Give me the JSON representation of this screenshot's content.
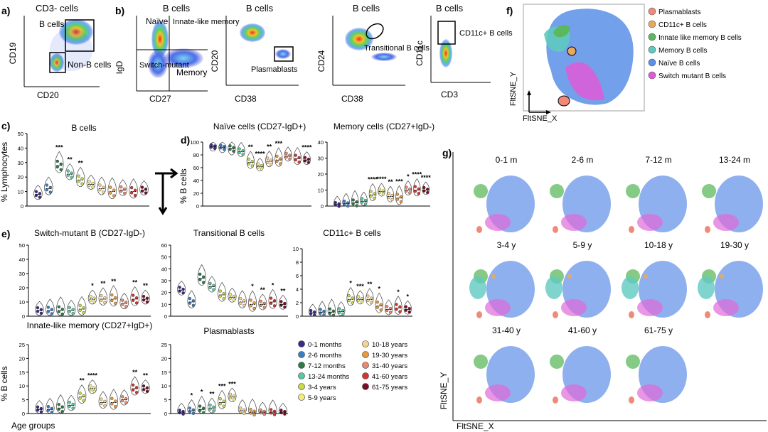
{
  "panels": {
    "a": {
      "letter": "a)",
      "title": "CD3- cells",
      "xlabel": "CD20",
      "ylabel": "CD19",
      "gates": [
        "B cells",
        "Non-B cells"
      ]
    },
    "b": {
      "letter": "b)",
      "title": "B cells",
      "xlabel": "CD27",
      "ylabel": "IgD",
      "quadrants": [
        "Naïve",
        "Innate-like memory",
        "Switch-mutant",
        "Memory"
      ]
    },
    "b2": {
      "title": "B cells",
      "xlabel": "CD38",
      "ylabel": "CD20",
      "gate": "Plasmablasts"
    },
    "b3": {
      "title": "B cells",
      "xlabel": "CD38",
      "ylabel": "CD24",
      "gate": "Transitional B cells"
    },
    "b4": {
      "title": "B cells",
      "xlabel": "CD3",
      "ylabel": "CD11c",
      "gate": "CD11c+ B cells"
    },
    "c": {
      "letter": "c)",
      "title": "B cells",
      "ylabel": "% Lymphocytes"
    },
    "d": {
      "letter": "d)",
      "title1": "Naïve cells (CD27-IgD+)",
      "title2": "Memory cells  (CD27+IgD-)",
      "ylabel": "% B cells"
    },
    "e": {
      "letter": "e)",
      "titles": [
        "Switch-mutant B (CD27-IgD-)",
        "Transitional B cells",
        "CD11c+ B cells",
        "Innate-like memory (CD27+IgD+)",
        "Plasmablasts"
      ],
      "ylabel": "% B cells",
      "xlabel": "Age groups"
    },
    "f": {
      "letter": "f)",
      "xlabel": "FltSNE_X",
      "ylabel": "FltSNE_Y",
      "legend": [
        {
          "label": "Plasmablasts",
          "color": "#ef8a7a"
        },
        {
          "label": "CD11c+ B cells",
          "color": "#e8a860"
        },
        {
          "label": "Innate like memory B cells",
          "color": "#5cb85c"
        },
        {
          "label": "Memory B cells",
          "color": "#5fc9c0"
        },
        {
          "label": "Naïve B cells",
          "color": "#5b8fe8"
        },
        {
          "label": "Switch mutant B cells",
          "color": "#e05ad8"
        }
      ]
    },
    "g": {
      "letter": "g)",
      "xlabel": "FltSNE_X",
      "ylabel": "FltSNE_Y",
      "maps": [
        "0-1 m",
        "2-6 m",
        "7-12 m",
        "13-24 m",
        "3-4 y",
        "5-9 y",
        "10-18 y",
        "19-30 y",
        "31-40 y",
        "41-60 y",
        "61-75 y"
      ]
    }
  },
  "age_legend": [
    {
      "label": "0-1 months",
      "color": "#3b2a8c"
    },
    {
      "label": "2-6 months",
      "color": "#3a7fc4"
    },
    {
      "label": "7-12 months",
      "color": "#2f7a4a"
    },
    {
      "label": "13-24 months",
      "color": "#59c9a0"
    },
    {
      "label": "3-4 years",
      "color": "#c8d84a"
    },
    {
      "label": "5-9 years",
      "color": "#f3ee7a"
    },
    {
      "label": "10-18 years",
      "color": "#f5d590"
    },
    {
      "label": "19-30 years",
      "color": "#e89a3a"
    },
    {
      "label": "31-40 years",
      "color": "#e88a70"
    },
    {
      "label": "41-60 years",
      "color": "#d8352a"
    },
    {
      "label": "61-75 years",
      "color": "#7a1028"
    }
  ],
  "chart_data": [
    {
      "type": "violin",
      "panel": "c",
      "title": "B cells",
      "ylabel": "% Lymphocytes",
      "ylim": [
        0,
        50
      ],
      "yticks": [
        "0",
        "10",
        "20",
        "30",
        "40",
        "50"
      ],
      "medians": [
        8,
        12,
        28,
        22,
        18,
        15,
        12,
        10,
        11,
        10,
        11
      ],
      "significance": [
        "",
        "",
        "***",
        "**",
        "**",
        "",
        "",
        "",
        "",
        "",
        ""
      ]
    },
    {
      "type": "violin",
      "panel": "d",
      "title": "Naïve cells (CD27-IgD+)",
      "ylabel": "% B cells",
      "ylim": [
        0,
        100
      ],
      "yticks": [
        "0",
        "20",
        "40",
        "60",
        "80",
        "100"
      ],
      "medians": [
        93,
        92,
        90,
        85,
        68,
        62,
        70,
        72,
        78,
        74,
        72
      ],
      "significance": [
        "",
        "",
        "",
        "",
        "**",
        "****",
        "**",
        "***",
        "",
        "",
        "****"
      ]
    },
    {
      "type": "violin",
      "panel": "d",
      "title": "Memory cells  (CD27+IgD-)",
      "ylim": [
        0,
        40
      ],
      "yticks": [
        "0",
        "10",
        "20",
        "30",
        "40"
      ],
      "medians": [
        1,
        1.5,
        2,
        3,
        7,
        9,
        6,
        5,
        10,
        10,
        10
      ],
      "significance": [
        "",
        "",
        "",
        "",
        "****",
        "****",
        "**",
        "***",
        "*",
        "****",
        "****"
      ]
    },
    {
      "type": "violin",
      "panel": "e",
      "title": "Switch-mutant B (CD27-IgD-)",
      "ylim": [
        0,
        50
      ],
      "yticks": [
        "0",
        "10",
        "20",
        "30",
        "40",
        "50"
      ],
      "medians": [
        4,
        4,
        4,
        4,
        5,
        12,
        12,
        12,
        9,
        12,
        12
      ],
      "significance": [
        "",
        "",
        "",
        "",
        "",
        "*",
        "**",
        "**",
        "",
        "**",
        "**"
      ]
    },
    {
      "type": "violin",
      "panel": "e",
      "title": "Transitional B cells",
      "ylim": [
        0,
        60
      ],
      "yticks": [
        "0",
        "10",
        "20",
        "30",
        "40",
        "50",
        "60"
      ],
      "medians": [
        22,
        12,
        32,
        25,
        18,
        16,
        12,
        10,
        10,
        12,
        10
      ],
      "significance": [
        "",
        "",
        "",
        "",
        "",
        "",
        "",
        "*",
        "**",
        "*",
        "**"
      ]
    },
    {
      "type": "violin",
      "panel": "e",
      "title": "CD11c+ B cells",
      "ylim": [
        0,
        10
      ],
      "yticks": [
        "0",
        "2",
        "4",
        "6",
        "8",
        "10"
      ],
      "medians": [
        0.5,
        0.6,
        0.6,
        0.7,
        2.5,
        2.5,
        2.5,
        1.5,
        1,
        1.2,
        1
      ],
      "significance": [
        "",
        "",
        "",
        "",
        "*",
        "***",
        "**",
        "*",
        "",
        "*",
        "*"
      ]
    },
    {
      "type": "violin",
      "panel": "e",
      "title": "Innate-like memory (CD27+IgD+)",
      "ylim": [
        0,
        25
      ],
      "yticks": [
        "0",
        "5",
        "10",
        "15",
        "20",
        "25"
      ],
      "medians": [
        1.5,
        1.5,
        2,
        3,
        6,
        9,
        4,
        4,
        5,
        9,
        9
      ],
      "significance": [
        "",
        "",
        "",
        "",
        "**",
        "****",
        "",
        "",
        "",
        "**",
        "**"
      ]
    },
    {
      "type": "violin",
      "panel": "e",
      "title": "Plasmablasts",
      "ylim": [
        0,
        25
      ],
      "yticks": [
        "0",
        "5",
        "10",
        "15",
        "20",
        "25"
      ],
      "medians": [
        0.5,
        1,
        1.5,
        2,
        4,
        6,
        1,
        0.5,
        0.5,
        0.5,
        0.5
      ],
      "significance": [
        "",
        "*",
        "*",
        "**",
        "***",
        "***",
        "",
        "",
        "",
        "",
        ""
      ]
    }
  ]
}
